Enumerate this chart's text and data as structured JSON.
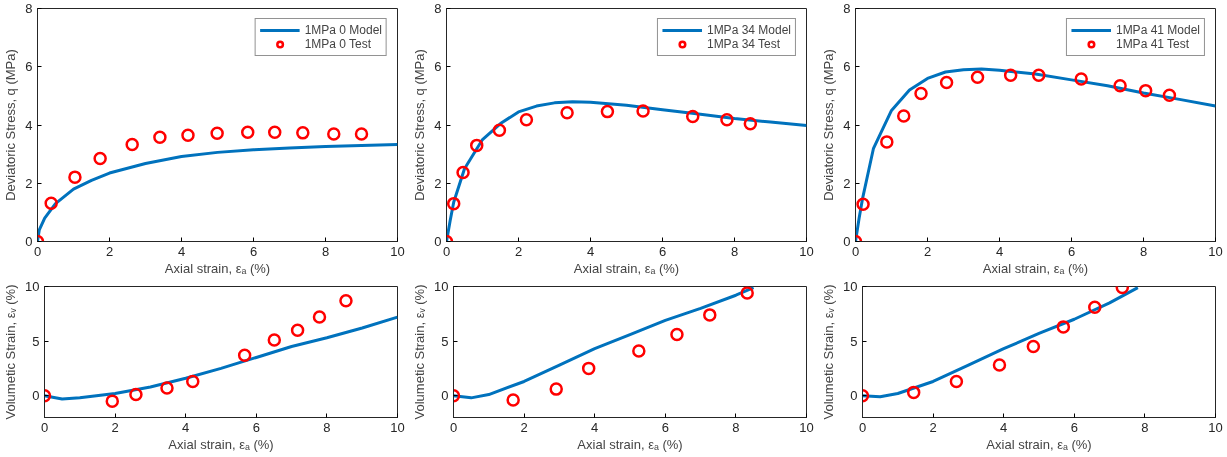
{
  "chart_data": [
    {
      "type": "line",
      "xlabel": "Axial strain, εₐ (%)",
      "ylabel": "Deviatoric Stress, q (MPa)",
      "xlim": [
        0,
        10
      ],
      "ylim": [
        0,
        8
      ],
      "xticks": [
        0,
        2,
        4,
        6,
        8,
        10
      ],
      "yticks": [
        0,
        2,
        4,
        6,
        8
      ],
      "grid": false,
      "legend": "top right",
      "series": [
        {
          "name": "1MPa 0 Model",
          "color": "#0072bd",
          "line_style": "solid",
          "x": [
            0,
            0.05,
            0.2,
            0.5,
            1,
            1.5,
            2,
            3,
            4,
            5,
            6,
            7,
            8,
            9,
            10
          ],
          "values": [
            0,
            0.4,
            0.8,
            1.3,
            1.8,
            2.1,
            2.35,
            2.68,
            2.92,
            3.06,
            3.15,
            3.21,
            3.26,
            3.3,
            3.33
          ]
        },
        {
          "name": "1MPa 0 Test",
          "type": "scatter",
          "marker": "circle",
          "color": "#ff0000",
          "x": [
            0,
            0.38,
            1.04,
            1.74,
            2.63,
            3.4,
            4.18,
            4.99,
            5.84,
            6.59,
            7.37,
            8.23,
            9.0
          ],
          "values": [
            0,
            1.31,
            2.21,
            2.85,
            3.33,
            3.58,
            3.65,
            3.72,
            3.75,
            3.75,
            3.73,
            3.69,
            3.69
          ]
        }
      ]
    },
    {
      "type": "line",
      "xlabel": "Axial strain, εₐ (%)",
      "ylabel": "Deviatoric Stress, q (MPa)",
      "xlim": [
        0,
        10
      ],
      "ylim": [
        0,
        8
      ],
      "xticks": [
        0,
        2,
        4,
        6,
        8,
        10
      ],
      "yticks": [
        0,
        2,
        4,
        6,
        8
      ],
      "grid": false,
      "legend": "top right",
      "series": [
        {
          "name": "1MPa 34 Model",
          "color": "#0072bd",
          "line_style": "solid",
          "x": [
            0,
            0.1,
            0.2,
            0.5,
            1,
            1.5,
            2,
            2.5,
            3,
            3.5,
            4,
            5,
            6,
            7,
            8,
            9,
            10
          ],
          "values": [
            0,
            0.7,
            1.35,
            2.5,
            3.5,
            4.05,
            4.45,
            4.65,
            4.76,
            4.8,
            4.78,
            4.68,
            4.52,
            4.38,
            4.22,
            4.1,
            3.98
          ]
        },
        {
          "name": "1MPa 34 Test",
          "type": "scatter",
          "marker": "circle",
          "color": "#ff0000",
          "x": [
            0,
            0.2,
            0.46,
            0.84,
            1.47,
            2.22,
            3.35,
            4.47,
            5.46,
            6.84,
            7.79,
            8.44
          ],
          "values": [
            0,
            1.3,
            2.37,
            3.3,
            3.82,
            4.18,
            4.42,
            4.46,
            4.48,
            4.29,
            4.18,
            4.04
          ]
        }
      ]
    },
    {
      "type": "line",
      "xlabel": "Axial strain, εₐ (%)",
      "ylabel": "Deviatoric Stress, q (MPa)",
      "xlim": [
        0,
        10
      ],
      "ylim": [
        0,
        8
      ],
      "xticks": [
        0,
        2,
        4,
        6,
        8,
        10
      ],
      "yticks": [
        0,
        2,
        4,
        6,
        8
      ],
      "grid": false,
      "legend": "top right",
      "series": [
        {
          "name": "1MPa 41 Model",
          "color": "#0072bd",
          "line_style": "solid",
          "x": [
            0,
            0.1,
            0.2,
            0.5,
            1,
            1.5,
            2,
            2.5,
            3,
            3.5,
            4,
            5,
            6,
            7,
            8,
            9,
            10
          ],
          "values": [
            0,
            0.8,
            1.5,
            3.2,
            4.5,
            5.2,
            5.6,
            5.82,
            5.9,
            5.92,
            5.88,
            5.75,
            5.55,
            5.35,
            5.1,
            4.88,
            4.65
          ]
        },
        {
          "name": "1MPa 41 Test",
          "type": "scatter",
          "marker": "circle",
          "color": "#ff0000",
          "x": [
            0,
            0.21,
            0.87,
            1.34,
            1.82,
            2.53,
            3.39,
            4.31,
            5.09,
            6.27,
            7.35,
            8.06,
            8.72
          ],
          "values": [
            0,
            1.28,
            3.42,
            4.31,
            5.08,
            5.46,
            5.64,
            5.71,
            5.71,
            5.58,
            5.35,
            5.18,
            5.02
          ]
        }
      ]
    },
    {
      "type": "line",
      "xlabel": "Axial strain, εₐ (%)",
      "ylabel": "Volumetic Strain, εᵥ (%)",
      "xlim": [
        0,
        10
      ],
      "ylim": [
        -2,
        10
      ],
      "xticks": [
        0,
        2,
        4,
        6,
        8,
        10
      ],
      "yticks": [
        0,
        5,
        10
      ],
      "grid": false,
      "series": [
        {
          "color": "#0072bd",
          "line_style": "solid",
          "x": [
            0,
            0.5,
            1,
            2,
            3,
            4,
            5,
            6,
            7,
            8,
            9,
            10
          ],
          "values": [
            0,
            -0.3,
            -0.2,
            0.2,
            0.8,
            1.6,
            2.5,
            3.5,
            4.5,
            5.3,
            6.2,
            7.2
          ]
        },
        {
          "type": "scatter",
          "marker": "circle",
          "color": "#ff0000",
          "x": [
            0,
            1.92,
            2.59,
            3.47,
            4.2,
            5.67,
            6.51,
            7.17,
            7.79,
            8.54
          ],
          "values": [
            0,
            -0.5,
            0.1,
            0.7,
            1.3,
            3.7,
            5.1,
            6.0,
            7.2,
            8.7
          ]
        }
      ]
    },
    {
      "type": "line",
      "xlabel": "Axial strain, εₐ (%)",
      "ylabel": "Volumetic Strain, εᵥ (%)",
      "xlim": [
        0,
        10
      ],
      "ylim": [
        -2,
        10
      ],
      "xticks": [
        0,
        2,
        4,
        6,
        8,
        10
      ],
      "yticks": [
        0,
        5,
        10
      ],
      "grid": false,
      "series": [
        {
          "color": "#0072bd",
          "line_style": "solid",
          "x": [
            0,
            0.5,
            1,
            2,
            3,
            4,
            5,
            6,
            7,
            8,
            8.5
          ],
          "values": [
            0,
            -0.2,
            0.1,
            1.3,
            2.8,
            4.3,
            5.6,
            6.9,
            8.0,
            9.2,
            9.9
          ]
        },
        {
          "type": "scatter",
          "marker": "circle",
          "color": "#ff0000",
          "x": [
            0,
            1.69,
            2.91,
            3.83,
            5.25,
            6.33,
            7.26,
            8.32
          ],
          "values": [
            0,
            -0.4,
            0.6,
            2.5,
            4.1,
            5.6,
            7.4,
            9.4
          ]
        }
      ]
    },
    {
      "type": "line",
      "xlabel": "Axial strain, εₐ (%)",
      "ylabel": "Volumetic Strain, εᵥ (%)",
      "xlim": [
        0,
        10
      ],
      "ylim": [
        -2,
        10
      ],
      "xticks": [
        0,
        2,
        4,
        6,
        8,
        10
      ],
      "yticks": [
        0,
        5,
        10
      ],
      "grid": false,
      "series": [
        {
          "color": "#0072bd",
          "line_style": "solid",
          "x": [
            0,
            0.5,
            1,
            2,
            3,
            4,
            5,
            6,
            7,
            7.8
          ],
          "values": [
            0,
            -0.1,
            0.2,
            1.3,
            2.8,
            4.3,
            5.7,
            7.0,
            8.5,
            9.9
          ]
        },
        {
          "type": "scatter",
          "marker": "circle",
          "color": "#ff0000",
          "x": [
            0,
            1.45,
            2.66,
            3.88,
            4.84,
            5.69,
            6.58,
            7.36
          ],
          "values": [
            0,
            0.3,
            1.3,
            2.8,
            4.5,
            6.3,
            8.1,
            9.9
          ]
        }
      ]
    }
  ]
}
